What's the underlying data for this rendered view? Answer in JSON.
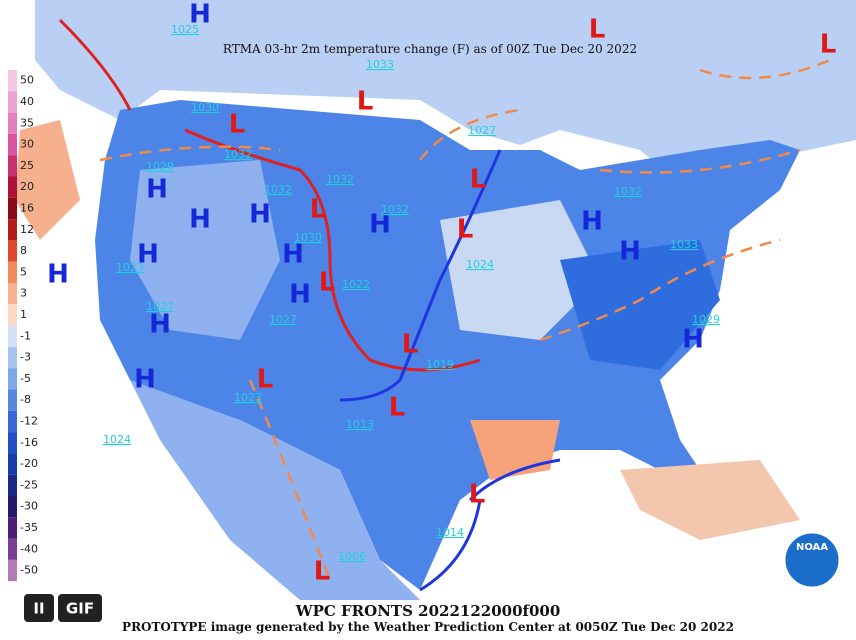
{
  "header": {
    "title": "RTMA 03-hr 2m temperature change (F) as of 00Z Tue Dec 20 2022"
  },
  "legend": [
    "50",
    "40",
    "35",
    "30",
    "25",
    "20",
    "16",
    "12",
    "8",
    "5",
    "3",
    "1",
    "-1",
    "-3",
    "-5",
    "-8",
    "-12",
    "-16",
    "-20",
    "-25",
    "-30",
    "-35",
    "-40",
    "-50"
  ],
  "high_centers": [
    "H",
    "H",
    "H",
    "H",
    "H",
    "H",
    "H",
    "H",
    "H",
    "H",
    "H",
    "H",
    "H",
    "H"
  ],
  "low_centers": [
    "L",
    "L",
    "L",
    "L",
    "L",
    "L",
    "L",
    "L",
    "L",
    "L",
    "L",
    "L",
    "L"
  ],
  "isobar_labels": [
    "1025",
    "1033",
    "1030",
    "1027",
    "1029",
    "1032",
    "1032",
    "1032",
    "1032",
    "1030",
    "1022",
    "1024",
    "1023",
    "1027",
    "1027",
    "1019",
    "1013",
    "1023",
    "1024",
    "1032",
    "1033",
    "1029",
    "1014",
    "1006"
  ],
  "footer": {
    "line1": "WPC FRONTS 2022122000f000",
    "line2": "PROTOTYPE image generated by the Weather Prediction Center at 0050Z Tue Dec 20 2022"
  },
  "logo": "NOAA",
  "controls": {
    "pause": "II",
    "format": "GIF"
  }
}
